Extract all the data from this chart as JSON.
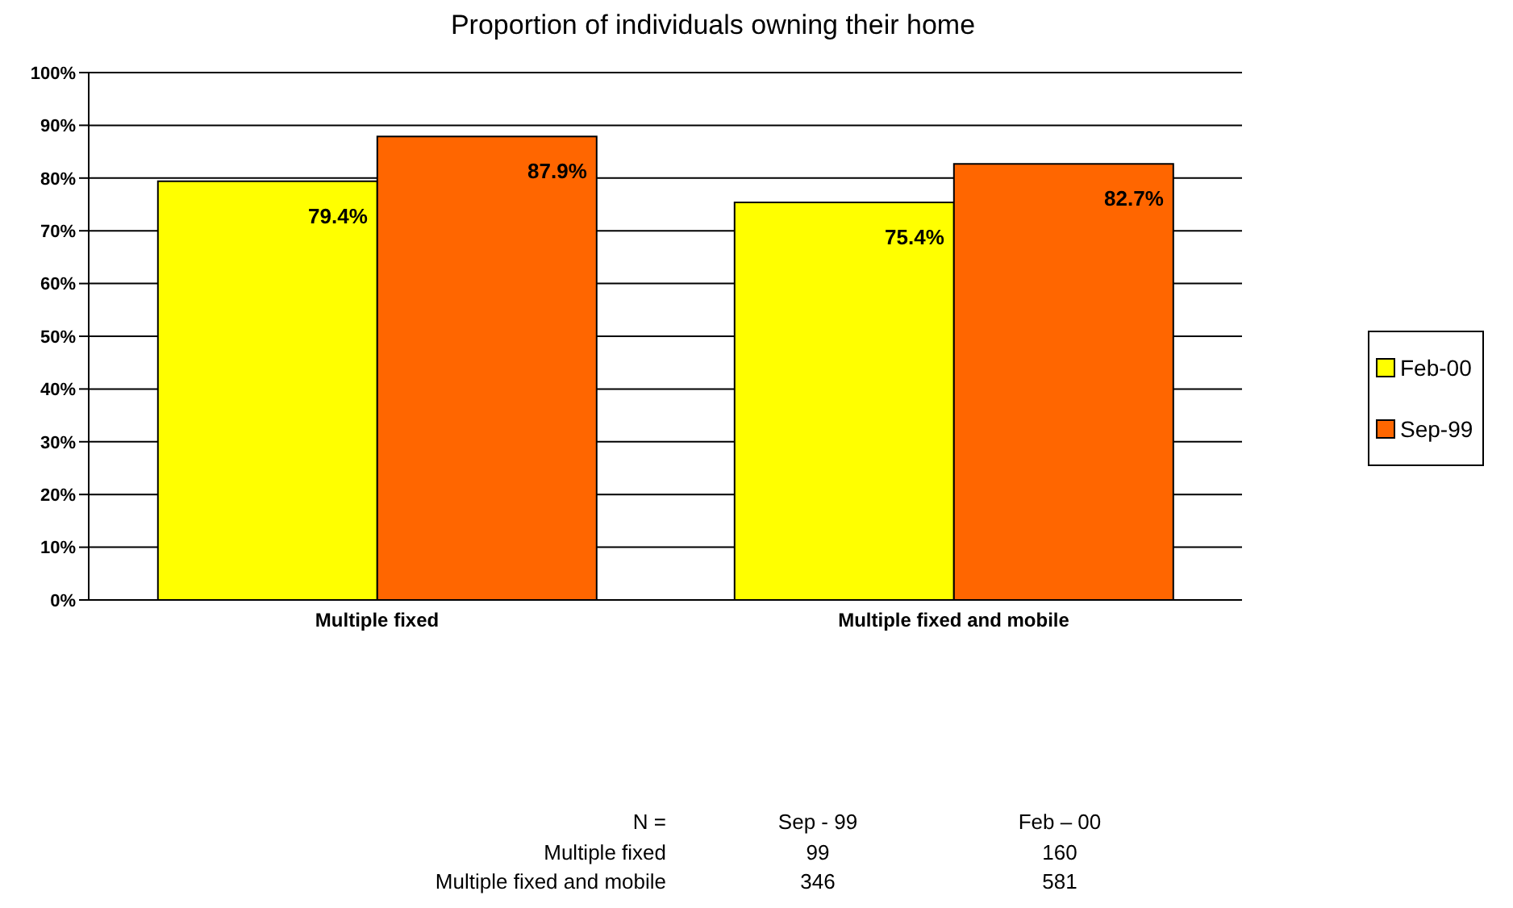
{
  "chart_data": {
    "type": "bar",
    "title": "Proportion of individuals owning their home",
    "categories": [
      "Multiple fixed",
      "Multiple fixed and mobile"
    ],
    "series": [
      {
        "name": "Feb-00",
        "color": "#ffff00",
        "values": [
          79.4,
          75.4
        ],
        "value_labels": [
          "79.4%",
          "75.4%"
        ]
      },
      {
        "name": "Sep-99",
        "color": "#ff6600",
        "values": [
          87.9,
          82.7
        ],
        "value_labels": [
          "87.9%",
          "82.7%"
        ]
      }
    ],
    "ylim": [
      0,
      100
    ],
    "yticks": [
      {
        "value": 0,
        "label": "0%"
      },
      {
        "value": 10,
        "label": "10%"
      },
      {
        "value": 20,
        "label": "20%"
      },
      {
        "value": 30,
        "label": "30%"
      },
      {
        "value": 40,
        "label": "40%"
      },
      {
        "value": 50,
        "label": "50%"
      },
      {
        "value": 60,
        "label": "60%"
      },
      {
        "value": 70,
        "label": "70%"
      },
      {
        "value": 80,
        "label": "80%"
      },
      {
        "value": 90,
        "label": "90%"
      },
      {
        "value": 100,
        "label": "100%"
      }
    ],
    "grid": "y",
    "legend": "right",
    "annotations": [
      "N =",
      "Sep - 99",
      "Feb – 00",
      "Multiple fixed",
      "99",
      "160",
      "Multiple fixed and mobile",
      "346",
      "581"
    ]
  }
}
